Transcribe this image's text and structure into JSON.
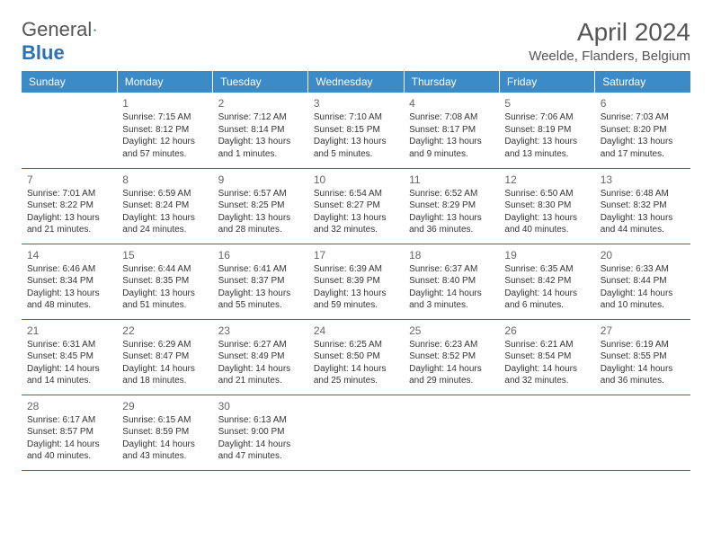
{
  "logo": {
    "general": "General",
    "blue": "Blue"
  },
  "title": "April 2024",
  "location": "Weelde, Flanders, Belgium",
  "colors": {
    "header_bg": "#3b8bc9",
    "header_text": "#ffffff",
    "border": "#2a71b8",
    "text": "#333333",
    "title_text": "#555555",
    "logo_blue": "#2a71b8"
  },
  "day_headers": [
    "Sunday",
    "Monday",
    "Tuesday",
    "Wednesday",
    "Thursday",
    "Friday",
    "Saturday"
  ],
  "weeks": [
    [
      null,
      {
        "n": "1",
        "sr": "Sunrise: 7:15 AM",
        "ss": "Sunset: 8:12 PM",
        "dl": "Daylight: 12 hours and 57 minutes."
      },
      {
        "n": "2",
        "sr": "Sunrise: 7:12 AM",
        "ss": "Sunset: 8:14 PM",
        "dl": "Daylight: 13 hours and 1 minutes."
      },
      {
        "n": "3",
        "sr": "Sunrise: 7:10 AM",
        "ss": "Sunset: 8:15 PM",
        "dl": "Daylight: 13 hours and 5 minutes."
      },
      {
        "n": "4",
        "sr": "Sunrise: 7:08 AM",
        "ss": "Sunset: 8:17 PM",
        "dl": "Daylight: 13 hours and 9 minutes."
      },
      {
        "n": "5",
        "sr": "Sunrise: 7:06 AM",
        "ss": "Sunset: 8:19 PM",
        "dl": "Daylight: 13 hours and 13 minutes."
      },
      {
        "n": "6",
        "sr": "Sunrise: 7:03 AM",
        "ss": "Sunset: 8:20 PM",
        "dl": "Daylight: 13 hours and 17 minutes."
      }
    ],
    [
      {
        "n": "7",
        "sr": "Sunrise: 7:01 AM",
        "ss": "Sunset: 8:22 PM",
        "dl": "Daylight: 13 hours and 21 minutes."
      },
      {
        "n": "8",
        "sr": "Sunrise: 6:59 AM",
        "ss": "Sunset: 8:24 PM",
        "dl": "Daylight: 13 hours and 24 minutes."
      },
      {
        "n": "9",
        "sr": "Sunrise: 6:57 AM",
        "ss": "Sunset: 8:25 PM",
        "dl": "Daylight: 13 hours and 28 minutes."
      },
      {
        "n": "10",
        "sr": "Sunrise: 6:54 AM",
        "ss": "Sunset: 8:27 PM",
        "dl": "Daylight: 13 hours and 32 minutes."
      },
      {
        "n": "11",
        "sr": "Sunrise: 6:52 AM",
        "ss": "Sunset: 8:29 PM",
        "dl": "Daylight: 13 hours and 36 minutes."
      },
      {
        "n": "12",
        "sr": "Sunrise: 6:50 AM",
        "ss": "Sunset: 8:30 PM",
        "dl": "Daylight: 13 hours and 40 minutes."
      },
      {
        "n": "13",
        "sr": "Sunrise: 6:48 AM",
        "ss": "Sunset: 8:32 PM",
        "dl": "Daylight: 13 hours and 44 minutes."
      }
    ],
    [
      {
        "n": "14",
        "sr": "Sunrise: 6:46 AM",
        "ss": "Sunset: 8:34 PM",
        "dl": "Daylight: 13 hours and 48 minutes."
      },
      {
        "n": "15",
        "sr": "Sunrise: 6:44 AM",
        "ss": "Sunset: 8:35 PM",
        "dl": "Daylight: 13 hours and 51 minutes."
      },
      {
        "n": "16",
        "sr": "Sunrise: 6:41 AM",
        "ss": "Sunset: 8:37 PM",
        "dl": "Daylight: 13 hours and 55 minutes."
      },
      {
        "n": "17",
        "sr": "Sunrise: 6:39 AM",
        "ss": "Sunset: 8:39 PM",
        "dl": "Daylight: 13 hours and 59 minutes."
      },
      {
        "n": "18",
        "sr": "Sunrise: 6:37 AM",
        "ss": "Sunset: 8:40 PM",
        "dl": "Daylight: 14 hours and 3 minutes."
      },
      {
        "n": "19",
        "sr": "Sunrise: 6:35 AM",
        "ss": "Sunset: 8:42 PM",
        "dl": "Daylight: 14 hours and 6 minutes."
      },
      {
        "n": "20",
        "sr": "Sunrise: 6:33 AM",
        "ss": "Sunset: 8:44 PM",
        "dl": "Daylight: 14 hours and 10 minutes."
      }
    ],
    [
      {
        "n": "21",
        "sr": "Sunrise: 6:31 AM",
        "ss": "Sunset: 8:45 PM",
        "dl": "Daylight: 14 hours and 14 minutes."
      },
      {
        "n": "22",
        "sr": "Sunrise: 6:29 AM",
        "ss": "Sunset: 8:47 PM",
        "dl": "Daylight: 14 hours and 18 minutes."
      },
      {
        "n": "23",
        "sr": "Sunrise: 6:27 AM",
        "ss": "Sunset: 8:49 PM",
        "dl": "Daylight: 14 hours and 21 minutes."
      },
      {
        "n": "24",
        "sr": "Sunrise: 6:25 AM",
        "ss": "Sunset: 8:50 PM",
        "dl": "Daylight: 14 hours and 25 minutes."
      },
      {
        "n": "25",
        "sr": "Sunrise: 6:23 AM",
        "ss": "Sunset: 8:52 PM",
        "dl": "Daylight: 14 hours and 29 minutes."
      },
      {
        "n": "26",
        "sr": "Sunrise: 6:21 AM",
        "ss": "Sunset: 8:54 PM",
        "dl": "Daylight: 14 hours and 32 minutes."
      },
      {
        "n": "27",
        "sr": "Sunrise: 6:19 AM",
        "ss": "Sunset: 8:55 PM",
        "dl": "Daylight: 14 hours and 36 minutes."
      }
    ],
    [
      {
        "n": "28",
        "sr": "Sunrise: 6:17 AM",
        "ss": "Sunset: 8:57 PM",
        "dl": "Daylight: 14 hours and 40 minutes."
      },
      {
        "n": "29",
        "sr": "Sunrise: 6:15 AM",
        "ss": "Sunset: 8:59 PM",
        "dl": "Daylight: 14 hours and 43 minutes."
      },
      {
        "n": "30",
        "sr": "Sunrise: 6:13 AM",
        "ss": "Sunset: 9:00 PM",
        "dl": "Daylight: 14 hours and 47 minutes."
      },
      null,
      null,
      null,
      null
    ]
  ]
}
